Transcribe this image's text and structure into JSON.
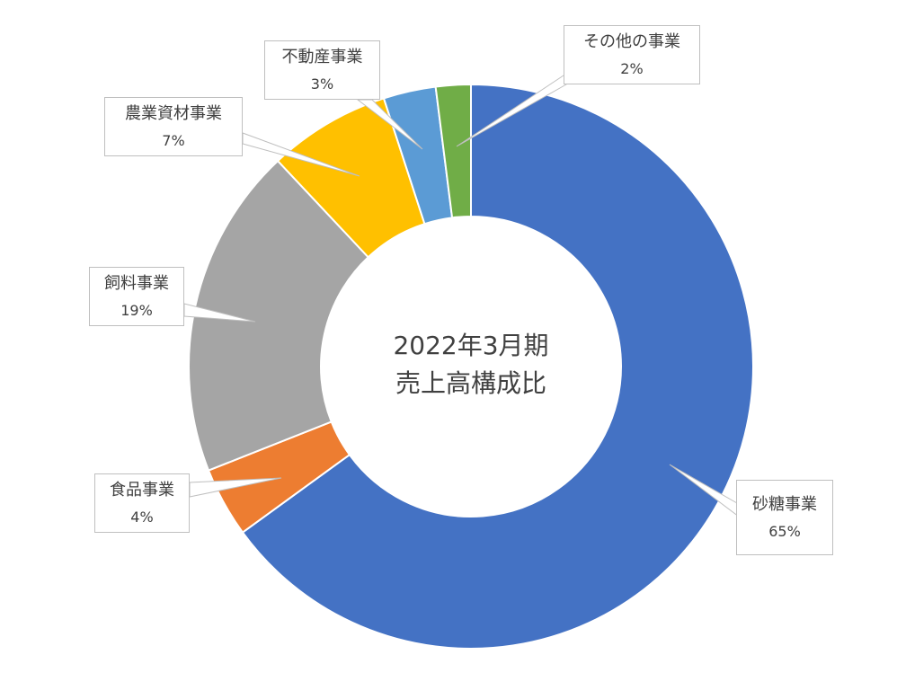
{
  "chart_data": {
    "type": "pie",
    "variant": "donut",
    "center_title": {
      "line1": "2022年3月期",
      "line2": "売上高構成比"
    },
    "slices": [
      {
        "label": "砂糖事業",
        "value_text": "65%",
        "value": 65,
        "color": "#4472c4"
      },
      {
        "label": "食品事業",
        "value_text": "4%",
        "value": 4,
        "color": "#ed7d31"
      },
      {
        "label": "飼料事業",
        "value_text": "19%",
        "value": 19,
        "color": "#a5a5a5"
      },
      {
        "label": "農業資材事業",
        "value_text": "7%",
        "value": 7,
        "color": "#ffc000"
      },
      {
        "label": "不動産事業",
        "value_text": "3%",
        "value": 3,
        "color": "#5b9bd5"
      },
      {
        "label": "その他の事業",
        "value_text": "2%",
        "value": 2,
        "color": "#70ad47"
      }
    ],
    "legend": "none",
    "data_labels": "callouts"
  }
}
